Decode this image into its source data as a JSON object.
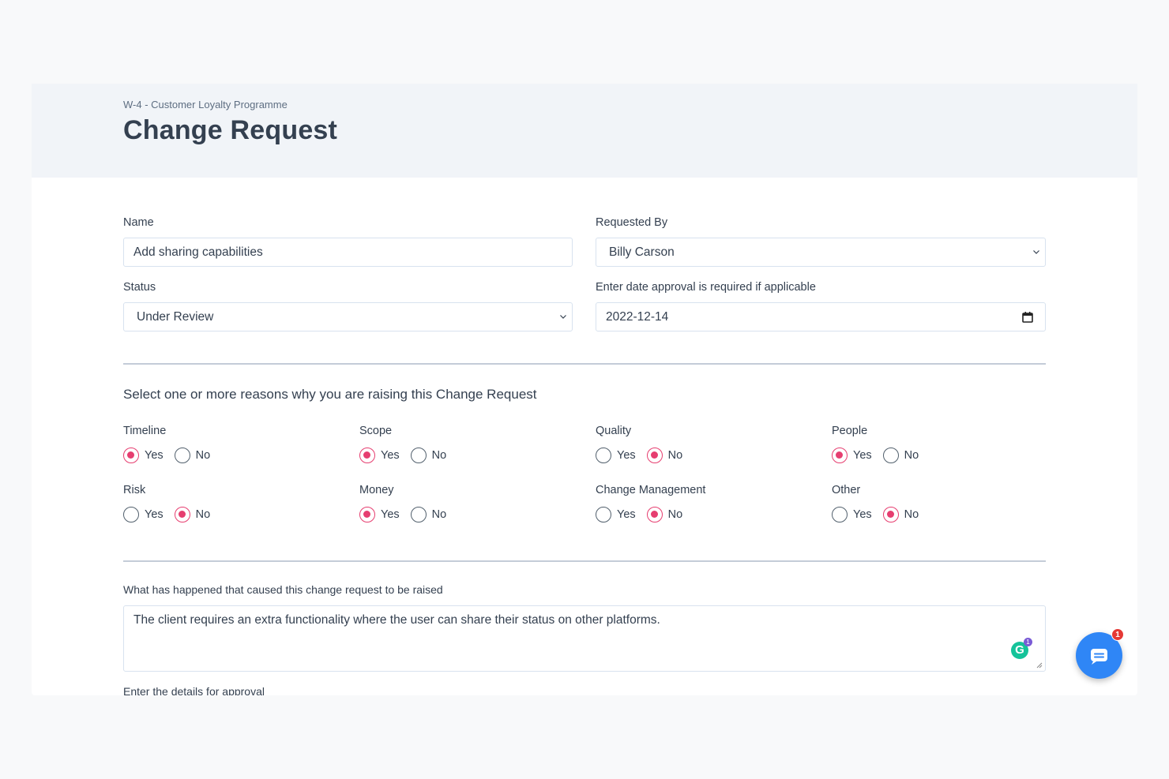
{
  "header": {
    "breadcrumb": "W-4 - Customer Loyalty Programme",
    "title": "Change Request"
  },
  "form": {
    "name": {
      "label": "Name",
      "value": "Add sharing capabilities"
    },
    "requested_by": {
      "label": "Requested By",
      "value": "Billy Carson"
    },
    "status": {
      "label": "Status",
      "value": "Under Review"
    },
    "approval_date": {
      "label": "Enter date approval is required if applicable",
      "value": "2022-12-14"
    }
  },
  "reasons": {
    "title": "Select one or more reasons why you are raising this Change Request",
    "yes_label": "Yes",
    "no_label": "No",
    "items": [
      {
        "label": "Timeline",
        "selected": "Yes"
      },
      {
        "label": "Scope",
        "selected": "Yes"
      },
      {
        "label": "Quality",
        "selected": "No"
      },
      {
        "label": "People",
        "selected": "Yes"
      },
      {
        "label": "Risk",
        "selected": "No"
      },
      {
        "label": "Money",
        "selected": "Yes"
      },
      {
        "label": "Change Management",
        "selected": "No"
      },
      {
        "label": "Other",
        "selected": "No"
      }
    ]
  },
  "cause": {
    "label": "What has happened that caused this change request to be raised",
    "value": "The client requires an extra functionality where the user can share their status on other platforms."
  },
  "details": {
    "label": "Enter the details for approval"
  },
  "grammarly": {
    "letter": "G",
    "badge": "1"
  },
  "chat": {
    "badge": "1",
    "icon": "chat-bubble-icon"
  },
  "colors": {
    "accent": "#e63e70",
    "chat": "#2f86f6",
    "header_bg": "#f1f4f8"
  }
}
